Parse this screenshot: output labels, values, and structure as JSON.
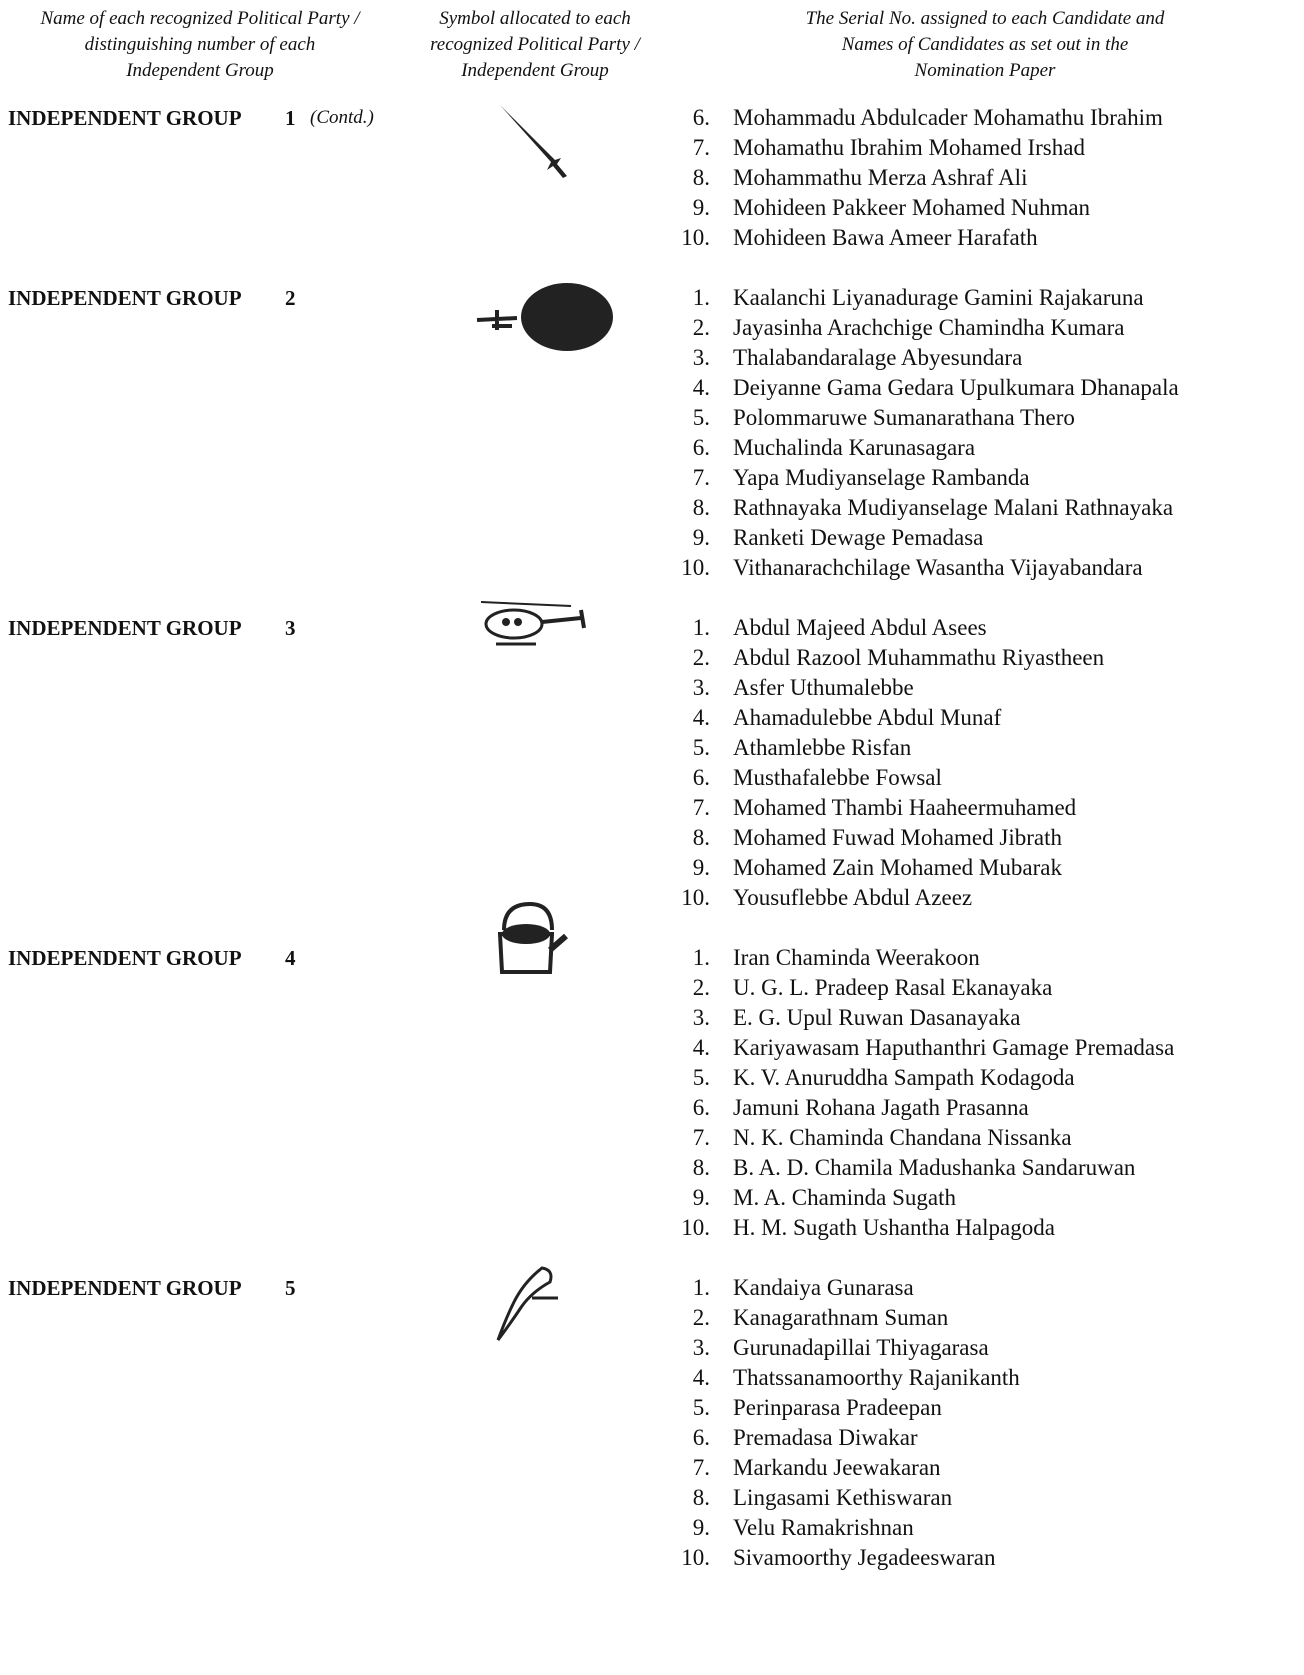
{
  "header": {
    "col1": [
      "Name of each recognized Political Party /",
      "distinguishing number of each",
      "Independent Group"
    ],
    "col2": [
      "Symbol allocated to each",
      "recognized Political Party /",
      "Independent Group"
    ],
    "col3": [
      "The Serial No. assigned to each Candidate and",
      "Names of Candidates as set out in the",
      "Nomination Paper"
    ]
  },
  "groups": [
    {
      "label": "INDEPENDENT GROUP",
      "number": "1",
      "note": "(Contd.)",
      "candidates": [
        {
          "serial": "6.",
          "name": "Mohammadu Abdulcader Mohamathu Ibrahim"
        },
        {
          "serial": "7.",
          "name": "Mohamathu Ibrahim Mohamed Irshad"
        },
        {
          "serial": "8.",
          "name": "Mohammathu Merza Ashraf Ali"
        },
        {
          "serial": "9.",
          "name": "Mohideen Pakkeer Mohamed Nuhman"
        },
        {
          "serial": "10.",
          "name": "Mohideen Bawa Ameer Harafath"
        }
      ]
    },
    {
      "label": "INDEPENDENT GROUP",
      "number": "2",
      "candidates": [
        {
          "serial": "1.",
          "name": "Kaalanchi Liyanadurage Gamini Rajakaruna"
        },
        {
          "serial": "2.",
          "name": "Jayasinha Arachchige Chamindha Kumara"
        },
        {
          "serial": "3.",
          "name": "Thalabandaralage  Abyesundara"
        },
        {
          "serial": "4.",
          "name": "Deiyanne Gama Gedara Upulkumara Dhanapala"
        },
        {
          "serial": "5.",
          "name": "Polommaruwe Sumanarathana Thero"
        },
        {
          "serial": "6.",
          "name": "Muchalinda Karunasagara"
        },
        {
          "serial": "7.",
          "name": "Yapa Mudiyanselage Rambanda"
        },
        {
          "serial": "8.",
          "name": "Rathnayaka Mudiyanselage Malani Rathnayaka"
        },
        {
          "serial": "9.",
          "name": "Ranketi Dewage Pemadasa"
        },
        {
          "serial": "10.",
          "name": "Vithanarachchilage Wasantha Vijayabandara"
        }
      ]
    },
    {
      "label": "INDEPENDENT GROUP",
      "number": "3",
      "candidates": [
        {
          "serial": "1.",
          "name": "Abdul Majeed Abdul Asees"
        },
        {
          "serial": "2.",
          "name": "Abdul Razool Muhammathu Riyastheen"
        },
        {
          "serial": "3.",
          "name": "Asfer Uthumalebbe"
        },
        {
          "serial": "4.",
          "name": "Ahamadulebbe Abdul Munaf"
        },
        {
          "serial": "5.",
          "name": "Athamlebbe Risfan"
        },
        {
          "serial": "6.",
          "name": "Musthafalebbe Fowsal"
        },
        {
          "serial": "7.",
          "name": "Mohamed Thambi Haaheermuhamed"
        },
        {
          "serial": "8.",
          "name": "Mohamed Fuwad Mohamed Jibrath"
        },
        {
          "serial": "9.",
          "name": "Mohamed Zain Mohamed Mubarak"
        },
        {
          "serial": "10.",
          "name": "Yousuflebbe Abdul Azeez"
        }
      ]
    },
    {
      "label": "INDEPENDENT GROUP",
      "number": "4",
      "candidates": [
        {
          "serial": "1.",
          "name": "Iran Chaminda Weerakoon"
        },
        {
          "serial": "2.",
          "name": "U. G. L. Pradeep Rasal Ekanayaka"
        },
        {
          "serial": "3.",
          "name": "E. G. Upul Ruwan Dasanayaka"
        },
        {
          "serial": "4.",
          "name": "Kariyawasam Haputhanthri Gamage Premadasa"
        },
        {
          "serial": "5.",
          "name": "K. V. Anuruddha Sampath Kodagoda"
        },
        {
          "serial": "6.",
          "name": "Jamuni Rohana Jagath Prasanna"
        },
        {
          "serial": "7.",
          "name": "N. K. Chaminda Chandana Nissanka"
        },
        {
          "serial": "8.",
          "name": "B. A. D. Chamila Madushanka Sandaruwan"
        },
        {
          "serial": "9.",
          "name": "M. A. Chaminda Sugath"
        },
        {
          "serial": "10.",
          "name": "H. M. Sugath Ushantha Halpagoda"
        }
      ]
    },
    {
      "label": "INDEPENDENT GROUP",
      "number": "5",
      "candidates": [
        {
          "serial": "1.",
          "name": "Kandaiya Gunarasa"
        },
        {
          "serial": "2.",
          "name": "Kanagarathnam Suman"
        },
        {
          "serial": "3.",
          "name": "Gurunadapillai Thiyagarasa"
        },
        {
          "serial": "4.",
          "name": "Thatssanamoorthy Rajanikanth"
        },
        {
          "serial": "5.",
          "name": "Perinparasa Pradeepan"
        },
        {
          "serial": "6.",
          "name": "Premadasa Diwakar"
        },
        {
          "serial": "7.",
          "name": "Markandu Jeewakaran"
        },
        {
          "serial": "8.",
          "name": "Lingasami Kethiswaran"
        },
        {
          "serial": "9.",
          "name": "Velu Ramakrishnan"
        },
        {
          "serial": "10.",
          "name": "Sivamoorthy Jegadeeswaran"
        }
      ]
    }
  ]
}
